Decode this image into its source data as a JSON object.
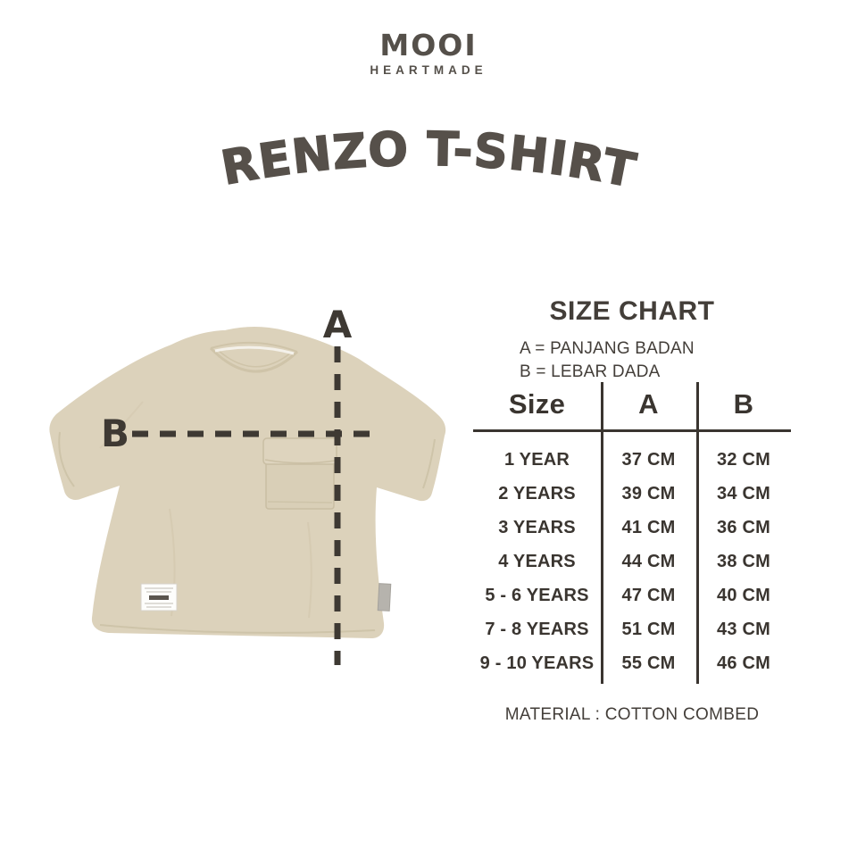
{
  "brand": {
    "name": "MOOI",
    "tagline": "HEARTMADE"
  },
  "product": {
    "title": "RENZO T-SHIRT"
  },
  "figure": {
    "measure_label_a": "A",
    "measure_label_b": "B"
  },
  "size_chart": {
    "title": "SIZE CHART",
    "legend": [
      "A = PANJANG BADAN",
      "B = LEBAR DADA"
    ],
    "columns": [
      "Size",
      "A",
      "B"
    ],
    "rows": [
      {
        "size": "1 YEAR",
        "a": "37 CM",
        "b": "32 CM"
      },
      {
        "size": "2 YEARS",
        "a": "39 CM",
        "b": "34 CM"
      },
      {
        "size": "3 YEARS",
        "a": "41 CM",
        "b": "36 CM"
      },
      {
        "size": "4 YEARS",
        "a": "44 CM",
        "b": "38 CM"
      },
      {
        "size": "5 - 6 YEARS",
        "a": "47 CM",
        "b": "40 CM"
      },
      {
        "size": "7 - 8 YEARS",
        "a": "51 CM",
        "b": "43 CM"
      },
      {
        "size": "9 - 10 YEARS",
        "a": "55 CM",
        "b": "46 CM"
      }
    ],
    "material": "MATERIAL : COTTON COMBED"
  },
  "colors": {
    "background": "#ffffff",
    "text_dark": "#3e3933",
    "title": "#56504a",
    "shirt_beige": "#dcd2bb",
    "shirt_seam": "#c9bea3",
    "measure_line": "#3e3933"
  }
}
